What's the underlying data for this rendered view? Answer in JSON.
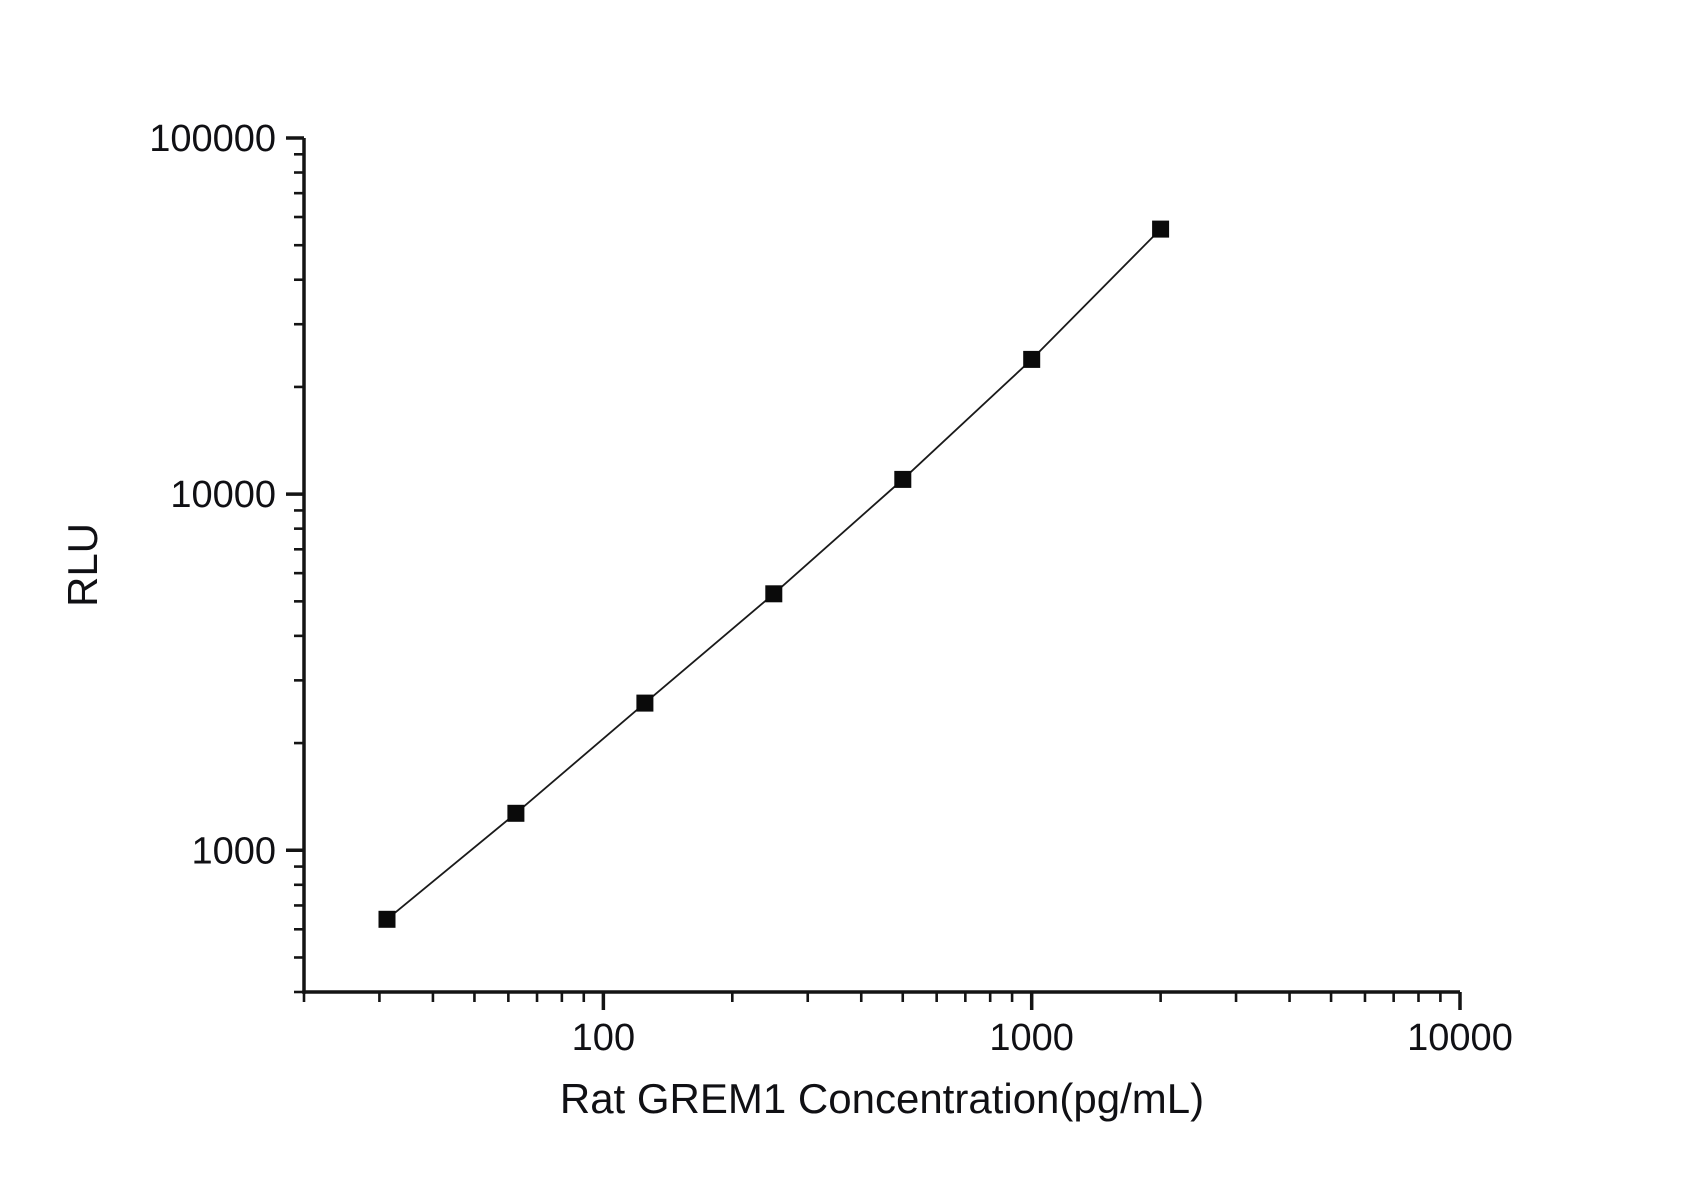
{
  "chart_data": {
    "type": "line",
    "title": "",
    "xlabel": "Rat GREM1 Concentration(pg/mL)",
    "ylabel": "RLU",
    "x_scale": "log",
    "y_scale": "log",
    "xlim": [
      20,
      10000
    ],
    "ylim": [
      400,
      100000
    ],
    "grid": false,
    "legend_position": "none",
    "x_ticks": [
      {
        "value": 100,
        "label": "100"
      },
      {
        "value": 1000,
        "label": "1000"
      },
      {
        "value": 10000,
        "label": "10000"
      }
    ],
    "y_ticks": [
      {
        "value": 1000,
        "label": "1000"
      },
      {
        "value": 10000,
        "label": "10000"
      },
      {
        "value": 100000,
        "label": "100000"
      }
    ],
    "series": [
      {
        "marker": "square",
        "marker_color": "#0a0a0a",
        "line_color": "#1a1a1a",
        "points": [
          {
            "x": 31.25,
            "y": 640
          },
          {
            "x": 62.5,
            "y": 1270
          },
          {
            "x": 125,
            "y": 2590
          },
          {
            "x": 250,
            "y": 5250
          },
          {
            "x": 500,
            "y": 11000
          },
          {
            "x": 1000,
            "y": 23900
          },
          {
            "x": 2000,
            "y": 55500
          }
        ]
      }
    ],
    "colors": {
      "background": "#ffffff",
      "axis": "#141414",
      "text": "#101014"
    }
  }
}
